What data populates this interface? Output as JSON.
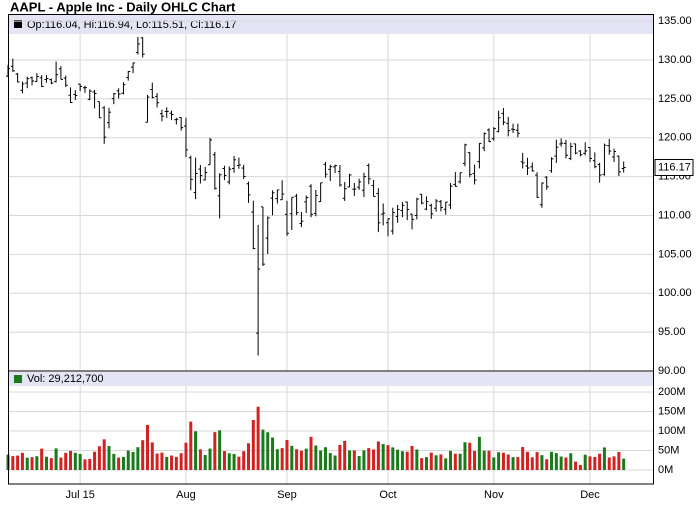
{
  "chart_data": {
    "type": "ohlc",
    "title": "AAPL - Apple Inc - Daily OHLC Chart",
    "price_legend": "Op:116.04, Hi:116.94, Lo:115.51, Cl:116.17",
    "volume_legend": "Vol: 29,212,700",
    "categories": [
      null,
      null,
      null,
      null,
      null,
      null,
      null,
      null,
      null,
      null,
      null,
      null,
      null,
      null,
      null,
      "Jul 15",
      null,
      null,
      null,
      null,
      null,
      null,
      null,
      null,
      null,
      null,
      null,
      null,
      null,
      null,
      null,
      null,
      null,
      null,
      null,
      null,
      null,
      "Aug",
      null,
      null,
      null,
      null,
      null,
      null,
      null,
      null,
      null,
      null,
      null,
      null,
      null,
      null,
      null,
      null,
      null,
      null,
      null,
      null,
      "Sep",
      null,
      null,
      null,
      null,
      null,
      null,
      null,
      null,
      null,
      null,
      null,
      null,
      null,
      null,
      null,
      null,
      null,
      null,
      null,
      null,
      "Oct",
      null,
      null,
      null,
      null,
      null,
      null,
      null,
      null,
      null,
      null,
      null,
      null,
      null,
      null,
      null,
      null,
      null,
      null,
      null,
      null,
      null,
      "Nov",
      null,
      null,
      null,
      null,
      null,
      null,
      null,
      null,
      null,
      null,
      null,
      null,
      null,
      null,
      null,
      null,
      null,
      null,
      null,
      "Dec",
      null,
      null,
      null,
      null,
      null,
      null,
      null
    ],
    "ohlc": [
      [
        127.92,
        129.34,
        127.85,
        128.88
      ],
      [
        129.18,
        130.18,
        128.48,
        128.59
      ],
      [
        128.19,
        128.33,
        127.11,
        127.17
      ],
      [
        126.1,
        127.24,
        125.71,
        126.92
      ],
      [
        127.03,
        127.85,
        126.37,
        127.6
      ],
      [
        127.72,
        127.88,
        126.74,
        127.3
      ],
      [
        127.23,
        128.31,
        127.22,
        127.88
      ],
      [
        127.71,
        128.06,
        126.51,
        126.6
      ],
      [
        127.49,
        128.06,
        127.08,
        127.61
      ],
      [
        127.48,
        127.61,
        126.88,
        127.03
      ],
      [
        127.21,
        129.8,
        127.12,
        128.11
      ],
      [
        128.86,
        129.2,
        127.5,
        127.5
      ],
      [
        127.67,
        127.99,
        126.51,
        126.75
      ],
      [
        125.46,
        126.47,
        124.48,
        124.53
      ],
      [
        125.57,
        126.12,
        124.86,
        125.43
      ],
      [
        126.9,
        126.94,
        125.99,
        126.6
      ],
      [
        126.43,
        126.69,
        125.77,
        126.44
      ],
      [
        124.94,
        126.23,
        124.85,
        126.0
      ],
      [
        125.89,
        126.15,
        123.77,
        125.69
      ],
      [
        124.64,
        124.64,
        122.54,
        122.57
      ],
      [
        123.85,
        124.06,
        119.22,
        120.07
      ],
      [
        121.94,
        123.85,
        121.21,
        123.28
      ],
      [
        125.03,
        125.76,
        124.32,
        125.66
      ],
      [
        126.04,
        126.37,
        125.04,
        125.61
      ],
      [
        125.72,
        127.15,
        125.58,
        126.82
      ],
      [
        127.74,
        128.57,
        127.35,
        128.51
      ],
      [
        129.08,
        129.62,
        128.31,
        129.62
      ],
      [
        130.97,
        132.97,
        130.7,
        132.07
      ],
      [
        132.85,
        132.92,
        130.32,
        130.75
      ],
      [
        121.99,
        125.5,
        121.99,
        125.22
      ],
      [
        126.2,
        127.09,
        125.06,
        125.16
      ],
      [
        125.32,
        125.74,
        123.9,
        124.5
      ],
      [
        123.09,
        123.61,
        122.12,
        122.77
      ],
      [
        123.38,
        123.91,
        122.55,
        123.38
      ],
      [
        123.15,
        123.5,
        122.27,
        122.99
      ],
      [
        122.32,
        122.57,
        121.71,
        122.37
      ],
      [
        122.6,
        122.64,
        120.91,
        121.3
      ],
      [
        121.5,
        122.57,
        117.52,
        118.44
      ],
      [
        117.42,
        117.7,
        113.25,
        114.64
      ],
      [
        112.95,
        117.44,
        112.1,
        115.4
      ],
      [
        115.97,
        116.5,
        114.12,
        115.13
      ],
      [
        114.58,
        116.25,
        114.5,
        115.52
      ],
      [
        116.53,
        119.99,
        116.53,
        119.72
      ],
      [
        117.81,
        118.18,
        113.33,
        113.49
      ],
      [
        112.53,
        115.42,
        109.63,
        115.24
      ],
      [
        116.04,
        116.4,
        114.54,
        115.15
      ],
      [
        114.32,
        116.31,
        114.01,
        115.96
      ],
      [
        116.04,
        117.65,
        115.5,
        117.16
      ],
      [
        116.43,
        117.44,
        116.01,
        116.5
      ],
      [
        116.1,
        116.52,
        114.68,
        115.01
      ],
      [
        114.08,
        114.35,
        111.63,
        112.65
      ],
      [
        110.43,
        111.9,
        105.65,
        105.76
      ],
      [
        94.87,
        108.8,
        92.0,
        103.12
      ],
      [
        111.11,
        111.11,
        103.5,
        103.74
      ],
      [
        107.09,
        109.89,
        105.05,
        109.69
      ],
      [
        112.23,
        113.24,
        110.02,
        112.92
      ],
      [
        112.17,
        113.31,
        111.54,
        113.29
      ],
      [
        112.03,
        114.53,
        112.0,
        112.76
      ],
      [
        110.15,
        111.88,
        107.36,
        107.72
      ],
      [
        110.23,
        112.34,
        108.13,
        112.34
      ],
      [
        112.49,
        112.78,
        110.04,
        110.37
      ],
      [
        108.97,
        110.45,
        108.51,
        109.27
      ],
      [
        111.75,
        112.56,
        110.32,
        112.31
      ],
      [
        113.76,
        114.02,
        109.77,
        110.15
      ],
      [
        110.27,
        113.28,
        109.9,
        112.57
      ],
      [
        111.79,
        114.21,
        111.76,
        114.21
      ],
      [
        116.58,
        116.89,
        114.86,
        115.31
      ],
      [
        115.93,
        116.53,
        114.42,
        116.28
      ],
      [
        116.25,
        116.54,
        115.44,
        116.41
      ],
      [
        115.66,
        116.49,
        113.72,
        113.92
      ],
      [
        112.21,
        114.3,
        111.87,
        113.45
      ],
      [
        113.67,
        115.37,
        113.66,
        115.21
      ],
      [
        113.38,
        114.18,
        112.52,
        113.4
      ],
      [
        113.63,
        114.72,
        113.3,
        114.32
      ],
      [
        113.25,
        115.5,
        112.37,
        115.0
      ],
      [
        116.44,
        116.69,
        114.02,
        114.71
      ],
      [
        113.85,
        114.57,
        112.44,
        112.44
      ],
      [
        112.83,
        113.51,
        107.86,
        109.06
      ],
      [
        110.17,
        111.54,
        108.73,
        110.3
      ],
      [
        109.07,
        109.62,
        107.31,
        109.58
      ],
      [
        108.01,
        111.01,
        107.55,
        110.38
      ],
      [
        109.88,
        111.37,
        109.07,
        110.78
      ],
      [
        110.63,
        111.74,
        109.77,
        111.31
      ],
      [
        111.74,
        111.77,
        109.41,
        110.78
      ],
      [
        110.19,
        110.19,
        108.21,
        109.5
      ],
      [
        110.0,
        112.28,
        109.49,
        112.12
      ],
      [
        112.73,
        112.75,
        111.44,
        111.6
      ],
      [
        110.82,
        112.45,
        110.68,
        111.79
      ],
      [
        111.29,
        111.52,
        109.56,
        110.21
      ],
      [
        110.93,
        112.1,
        110.49,
        111.86
      ],
      [
        111.78,
        112.0,
        110.53,
        111.04
      ],
      [
        110.8,
        111.75,
        110.11,
        111.73
      ],
      [
        111.34,
        114.17,
        110.82,
        113.77
      ],
      [
        114.0,
        115.58,
        113.7,
        113.76
      ],
      [
        114.33,
        115.5,
        114.1,
        115.5
      ],
      [
        116.7,
        119.23,
        116.33,
        119.08
      ],
      [
        118.08,
        118.13,
        114.92,
        115.28
      ],
      [
        115.4,
        116.54,
        113.99,
        114.55
      ],
      [
        116.93,
        119.3,
        116.06,
        119.27
      ],
      [
        118.7,
        120.69,
        118.27,
        120.53
      ],
      [
        120.99,
        121.22,
        119.45,
        119.5
      ],
      [
        119.87,
        121.36,
        119.61,
        121.18
      ],
      [
        120.79,
        123.49,
        120.7,
        122.57
      ],
      [
        123.13,
        123.82,
        121.62,
        122.0
      ],
      [
        121.85,
        122.69,
        120.18,
        120.92
      ],
      [
        121.11,
        121.81,
        120.62,
        121.06
      ],
      [
        120.96,
        121.81,
        120.05,
        120.57
      ],
      [
        116.9,
        118.07,
        116.06,
        116.77
      ],
      [
        116.37,
        117.42,
        115.21,
        116.11
      ],
      [
        116.26,
        116.82,
        115.65,
        115.72
      ],
      [
        115.2,
        115.57,
        112.27,
        112.34
      ],
      [
        111.38,
        114.24,
        111.0,
        114.18
      ],
      [
        114.92,
        115.05,
        113.32,
        113.69
      ],
      [
        115.76,
        117.49,
        115.5,
        117.29
      ],
      [
        117.64,
        119.75,
        116.76,
        118.78
      ],
      [
        119.2,
        119.92,
        118.85,
        119.3
      ],
      [
        119.27,
        119.73,
        117.34,
        117.75
      ],
      [
        117.33,
        119.35,
        117.12,
        118.88
      ],
      [
        119.21,
        119.23,
        117.87,
        118.03
      ],
      [
        118.29,
        118.41,
        117.6,
        117.81
      ],
      [
        117.99,
        119.41,
        117.75,
        118.3
      ],
      [
        118.75,
        118.81,
        116.86,
        117.34
      ],
      [
        117.05,
        118.11,
        116.08,
        116.28
      ],
      [
        116.55,
        116.79,
        114.22,
        115.2
      ],
      [
        115.29,
        119.25,
        115.11,
        119.03
      ],
      [
        118.98,
        119.86,
        117.81,
        118.28
      ],
      [
        117.52,
        118.6,
        116.86,
        118.23
      ],
      [
        117.64,
        117.69,
        115.08,
        115.62
      ],
      [
        116.04,
        116.94,
        115.51,
        116.17
      ]
    ],
    "volumes": [
      39400000,
      35600000,
      36900000,
      43900000,
      31500000,
      32900000,
      35400000,
      54700000,
      34000000,
      30300000,
      55300000,
      31900000,
      44100000,
      49200000,
      44100000,
      41000000,
      27200000,
      28300000,
      46800000,
      60800000,
      78600000,
      61300000,
      41400000,
      31800000,
      33600000,
      50000000,
      46200000,
      58400000,
      76400000,
      115400000,
      70700000,
      42200000,
      44500000,
      33600000,
      37000000,
      33600000,
      42900000,
      69900000,
      124100000,
      99300000,
      52900000,
      38400000,
      54900000,
      97100000,
      101700000,
      48500000,
      42900000,
      40900000,
      34100000,
      48300000,
      68500000,
      128300000,
      162200000,
      103600000,
      96800000,
      83300000,
      53200000,
      56200000,
      76800000,
      61900000,
      53200000,
      49600000,
      54800000,
      85000000,
      62900000,
      49900000,
      58400000,
      43300000,
      37200000,
      64100000,
      74700000,
      50200000,
      50200000,
      35800000,
      50200000,
      56200000,
      52600000,
      73200000,
      66500000,
      63700000,
      58000000,
      52100000,
      48200000,
      46900000,
      61700000,
      52700000,
      30400000,
      33000000,
      44500000,
      37700000,
      39900000,
      29800000,
      48900000,
      41800000,
      41700000,
      71300000,
      69900000,
      48800000,
      85000000,
      49400000,
      49400000,
      32200000,
      45600000,
      44200000,
      39600000,
      33000000,
      33100000,
      59100000,
      46700000,
      32500000,
      45800000,
      38100000,
      27700000,
      46700000,
      43300000,
      34500000,
      32100000,
      42900000,
      21400000,
      13000000,
      39200000,
      34900000,
      33400000,
      41600000,
      57800000,
      32100000,
      34900000,
      46100000,
      29212700
    ],
    "ylim": [
      90,
      135
    ],
    "yticks": [
      {
        "value": 90,
        "label": "90.00"
      },
      {
        "value": 95,
        "label": "95.00"
      },
      {
        "value": 100,
        "label": "100.00"
      },
      {
        "value": 105,
        "label": "105.00"
      },
      {
        "value": 110,
        "label": "110.00"
      },
      {
        "value": 115,
        "label": "115.00"
      },
      {
        "value": 120,
        "label": "120.00"
      },
      {
        "value": 125,
        "label": "125.00"
      },
      {
        "value": 130,
        "label": "130.00"
      },
      {
        "value": 135,
        "label": "135.00"
      }
    ],
    "y2lim": [
      0,
      200000000
    ],
    "y2ticks": [
      {
        "value": 0,
        "label": "0M"
      },
      {
        "value": 50000000,
        "label": "50M"
      },
      {
        "value": 100000000,
        "label": "100M"
      },
      {
        "value": 150000000,
        "label": "150M"
      },
      {
        "value": 200000000,
        "label": "200M"
      }
    ],
    "grid": true,
    "color": "#000000",
    "up_color": "#1a7a1a",
    "down_color": "#d42020"
  }
}
